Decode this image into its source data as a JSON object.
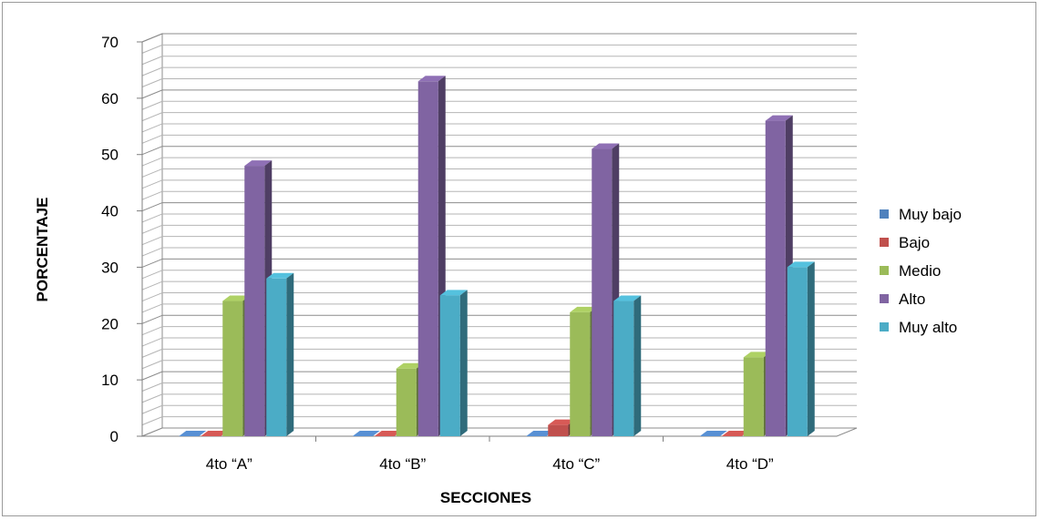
{
  "chart_data": {
    "type": "bar",
    "title": "",
    "xlabel": "SECCIONES",
    "ylabel": "PORCENTAJE",
    "ylim": [
      0,
      70
    ],
    "y_ticks": [
      0,
      10,
      20,
      30,
      40,
      50,
      60,
      70
    ],
    "y_minor_step": 2,
    "grid": true,
    "legend_position": "right",
    "categories": [
      "4to “A”",
      "4to “B”",
      "4to “C”",
      "4to “D”"
    ],
    "series": [
      {
        "name": "Muy bajo",
        "color": "#4F81BD",
        "values": [
          0,
          0,
          0,
          0
        ]
      },
      {
        "name": "Bajo",
        "color": "#C0504D",
        "values": [
          0,
          0,
          2,
          0
        ]
      },
      {
        "name": "Medio",
        "color": "#9BBB59",
        "values": [
          24,
          12,
          22,
          14
        ]
      },
      {
        "name": "Alto",
        "color": "#8064A2",
        "values": [
          48,
          63,
          51,
          56
        ]
      },
      {
        "name": "Muy alto",
        "color": "#4BACC6",
        "values": [
          28,
          25,
          24,
          30
        ]
      }
    ]
  }
}
